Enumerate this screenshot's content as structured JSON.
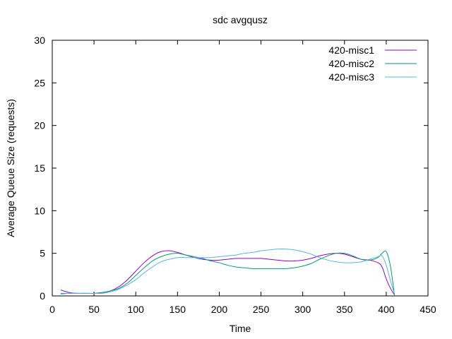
{
  "chart_data": {
    "type": "line",
    "title": "sdc avgqusz",
    "xlabel": "Time",
    "ylabel": "Average Queue Size (requests)",
    "xlim": [
      0,
      450
    ],
    "ylim": [
      0,
      30
    ],
    "xticks": [
      0,
      50,
      100,
      150,
      200,
      250,
      300,
      350,
      400,
      450
    ],
    "yticks": [
      0,
      5,
      10,
      15,
      20,
      25,
      30
    ],
    "grid": false,
    "legend_position": "top-right",
    "series": [
      {
        "name": "420-misc1",
        "color": "#9400d3",
        "x": [
          10,
          20,
          30,
          40,
          50,
          60,
          70,
          80,
          90,
          100,
          110,
          120,
          130,
          140,
          150,
          160,
          170,
          180,
          190,
          200,
          210,
          220,
          230,
          240,
          250,
          260,
          270,
          280,
          290,
          300,
          310,
          320,
          330,
          340,
          350,
          360,
          370,
          380,
          390,
          395,
          400,
          405,
          410
        ],
        "y": [
          0.7,
          0.4,
          0.3,
          0.3,
          0.3,
          0.4,
          0.6,
          1.1,
          1.9,
          2.9,
          3.9,
          4.7,
          5.2,
          5.3,
          5.1,
          4.8,
          4.5,
          4.3,
          4.2,
          4.2,
          4.3,
          4.4,
          4.4,
          4.4,
          4.4,
          4.3,
          4.2,
          4.1,
          4.1,
          4.2,
          4.4,
          4.7,
          4.9,
          5.0,
          4.9,
          4.6,
          4.3,
          4.2,
          3.9,
          3.4,
          2.0,
          0.9,
          0.1
        ]
      },
      {
        "name": "420-misc2",
        "color": "#009e73",
        "x": [
          10,
          20,
          30,
          40,
          50,
          60,
          70,
          80,
          90,
          100,
          110,
          120,
          130,
          140,
          150,
          160,
          170,
          180,
          190,
          200,
          210,
          220,
          230,
          240,
          250,
          260,
          270,
          280,
          290,
          300,
          310,
          320,
          330,
          340,
          350,
          360,
          370,
          380,
          390,
          395,
          400,
          405,
          410
        ],
        "y": [
          0.3,
          0.3,
          0.3,
          0.3,
          0.3,
          0.4,
          0.6,
          0.9,
          1.5,
          2.4,
          3.3,
          4.1,
          4.6,
          4.9,
          5.0,
          4.8,
          4.6,
          4.4,
          4.1,
          3.9,
          3.6,
          3.4,
          3.3,
          3.2,
          3.2,
          3.2,
          3.2,
          3.2,
          3.3,
          3.5,
          3.8,
          4.3,
          4.7,
          5.0,
          5.0,
          4.7,
          4.3,
          4.2,
          4.5,
          5.0,
          5.2,
          3.5,
          0.0
        ]
      },
      {
        "name": "420-misc3",
        "color": "#56b4e9",
        "x": [
          10,
          20,
          30,
          40,
          50,
          60,
          70,
          80,
          90,
          100,
          110,
          120,
          130,
          140,
          150,
          160,
          170,
          180,
          190,
          200,
          210,
          220,
          230,
          240,
          250,
          260,
          270,
          280,
          290,
          300,
          310,
          320,
          330,
          340,
          350,
          360,
          370,
          380,
          390,
          395,
          400,
          405,
          410
        ],
        "y": [
          0.2,
          0.3,
          0.3,
          0.3,
          0.3,
          0.3,
          0.5,
          0.8,
          1.3,
          1.9,
          2.7,
          3.4,
          4.0,
          4.3,
          4.5,
          4.5,
          4.5,
          4.5,
          4.5,
          4.6,
          4.7,
          4.8,
          5.0,
          5.1,
          5.3,
          5.4,
          5.5,
          5.5,
          5.4,
          5.2,
          4.9,
          4.5,
          4.2,
          4.0,
          3.9,
          3.9,
          4.0,
          4.3,
          4.6,
          4.7,
          3.6,
          1.8,
          0.2
        ]
      }
    ]
  }
}
